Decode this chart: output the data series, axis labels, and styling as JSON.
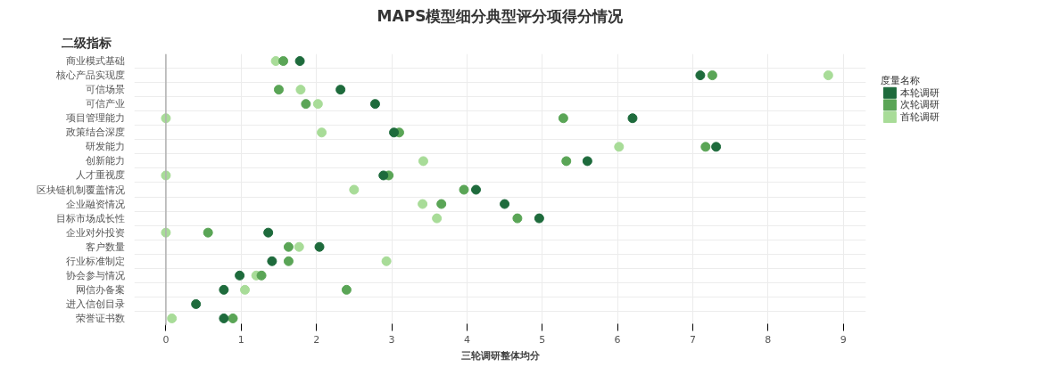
{
  "chart_data": {
    "type": "scatter",
    "title": "MAPS模型细分典型评分项得分情况",
    "xlabel": "三轮调研整体均分",
    "ylabel": "二级指标",
    "legend_title": "度量名称",
    "orientation": "horizontal",
    "categories": [
      "商业模式基础",
      "核心产品实现度",
      "可信场景",
      "可信产业",
      "项目管理能力",
      "政策结合深度",
      "研发能力",
      "创新能力",
      "人才重视度",
      "区块链机制覆盖情况",
      "企业融资情况",
      "目标市场成长性",
      "企业对外投资",
      "客户数量",
      "行业标准制定",
      "协会参与情况",
      "网信办备案",
      "进入信创目录",
      "荣誉证书数"
    ],
    "series": [
      {
        "name": "首轮调研",
        "color": "#a8dc98",
        "values": [
          1.46,
          8.8,
          1.79,
          2.02,
          0,
          2.07,
          6.02,
          3.42,
          0,
          2.5,
          3.41,
          3.6,
          0,
          1.77,
          2.93,
          1.2,
          1.05,
          null,
          0.08
        ]
      },
      {
        "name": "次轮调研",
        "color": "#5aa556",
        "values": [
          1.56,
          7.26,
          1.5,
          1.86,
          5.28,
          3.1,
          7.17,
          5.32,
          2.96,
          3.96,
          3.66,
          4.67,
          0.56,
          1.63,
          1.63,
          1.27,
          2.4,
          null,
          0.89
        ]
      },
      {
        "name": "本轮调研",
        "color": "#1e6b3c",
        "values": [
          1.78,
          7.1,
          2.32,
          2.78,
          6.2,
          3.03,
          7.31,
          5.6,
          2.89,
          4.12,
          4.5,
          4.96,
          1.36,
          2.04,
          1.41,
          0.98,
          0.77,
          0.4,
          0.77
        ]
      }
    ],
    "xlim": [
      -0.42,
      9.3
    ],
    "xticks": [
      0,
      1,
      2,
      3,
      4,
      5,
      6,
      7,
      8,
      9
    ],
    "ref_lines": [
      {
        "axis": "x",
        "value": 0,
        "color": "#b0b0b0"
      }
    ],
    "grid": true,
    "legend": "right",
    "marker": "circle"
  }
}
